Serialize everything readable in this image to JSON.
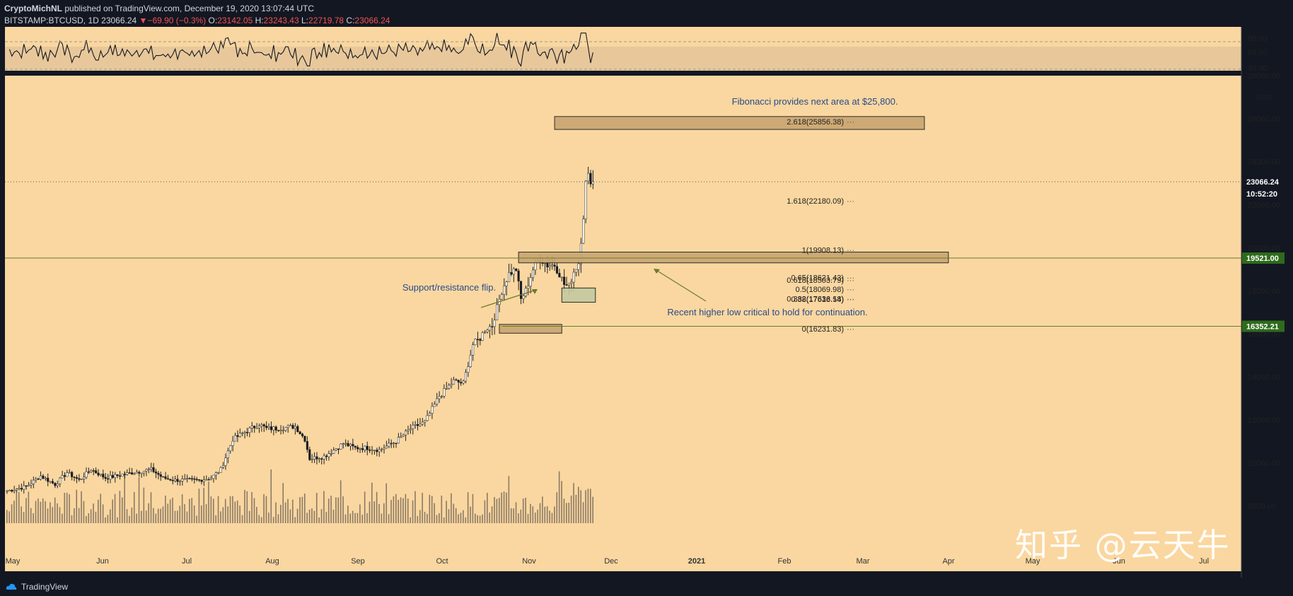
{
  "header": {
    "author": "CryptoMichNL",
    "published": "published on TradingView.com, December 19, 2020 13:07:44 UTC",
    "symbol": "BITSTAMP:BTCUSD, 1D",
    "last": "23066.24",
    "change_arrow": "▼",
    "change": "−69.90 (−0.3%)",
    "o_label": "O:",
    "o": "23142.05",
    "h_label": "H:",
    "h": "23243.43",
    "l_label": "L:",
    "l": "22719.78",
    "c_label": "C:",
    "c": "23066.24"
  },
  "footer": {
    "brand": "TradingView",
    "watermark": "知乎 @云天牛"
  },
  "colors": {
    "background": "#fad7a0",
    "up": "#ffffff",
    "down": "#131722",
    "fib_box": "#c8a570",
    "fib_box_green": "#c3c9a0",
    "line_green": "#6b7a2a",
    "price_label_bg": "#131722",
    "green_label_bg": "#2e6b1c",
    "annotation": "#2a4a8a"
  },
  "chart_data": {
    "type": "candlestick",
    "symbol": "BITSTAMP:BTCUSD",
    "interval": "1D",
    "price_unit": "USD",
    "ylim": [
      7200,
      28000
    ],
    "x_start_date": "2020-04-28",
    "x_months": [
      "May",
      "Jun",
      "Jul",
      "Aug",
      "Sep",
      "Oct",
      "Nov",
      "Dec",
      "2021",
      "Feb",
      "Mar",
      "Apr",
      "May",
      "Jun",
      "Jul"
    ],
    "y_ticks": [
      "28000.00",
      "26000.00",
      "24000.00",
      "22000.00",
      "20000.00",
      "18000.00",
      "16000.00",
      "14000.00",
      "12000.00",
      "10000.00",
      "8000.00"
    ],
    "y_ticks_values": [
      28000,
      26000,
      24000,
      22000,
      20000,
      18000,
      16000,
      14000,
      12000,
      10000,
      8000
    ],
    "close_anchors": [
      [
        0,
        8700
      ],
      [
        8,
        8900
      ],
      [
        14,
        9400
      ],
      [
        20,
        9000
      ],
      [
        25,
        9550
      ],
      [
        30,
        9200
      ],
      [
        35,
        9700
      ],
      [
        41,
        9300
      ],
      [
        50,
        9500
      ],
      [
        60,
        9700
      ],
      [
        65,
        9300
      ],
      [
        70,
        9200
      ],
      [
        80,
        9200
      ],
      [
        85,
        9300
      ],
      [
        89,
        9700
      ],
      [
        94,
        11100
      ],
      [
        100,
        11500
      ],
      [
        105,
        11800
      ],
      [
        108,
        11600
      ],
      [
        113,
        11600
      ],
      [
        120,
        11700
      ],
      [
        124,
        11100
      ],
      [
        126,
        10200
      ],
      [
        132,
        10300
      ],
      [
        140,
        10900
      ],
      [
        145,
        10700
      ],
      [
        150,
        10700
      ],
      [
        155,
        10600
      ],
      [
        162,
        11000
      ],
      [
        168,
        11600
      ],
      [
        174,
        11900
      ],
      [
        180,
        13100
      ],
      [
        186,
        13800
      ],
      [
        190,
        13700
      ],
      [
        194,
        15500
      ],
      [
        197,
        15800
      ],
      [
        199,
        16200
      ],
      [
        202,
        16400
      ],
      [
        206,
        18000
      ],
      [
        209,
        18800
      ],
      [
        212,
        19000
      ],
      [
        214,
        17600
      ],
      [
        216,
        18000
      ],
      [
        219,
        19000
      ],
      [
        222,
        19500
      ],
      [
        225,
        19200
      ],
      [
        228,
        19200
      ],
      [
        230,
        18800
      ],
      [
        232,
        18300
      ],
      [
        234,
        18200
      ],
      [
        236,
        18900
      ],
      [
        238,
        19300
      ],
      [
        240,
        21500
      ],
      [
        241,
        23000
      ],
      [
        242,
        23300
      ],
      [
        244,
        23066
      ]
    ],
    "price_line": {
      "value": "23066.24",
      "countdown": "10:52:20"
    },
    "horizontal_levels": [
      {
        "value": 19521,
        "label": "19521.00"
      },
      {
        "value": 16352.21,
        "label": "16352.21"
      }
    ],
    "fibonacci": [
      {
        "label": "2.618(25856.38)",
        "price": 25856.38
      },
      {
        "label": "1.618(22180.09)",
        "price": 22180.09
      },
      {
        "label": "1(19908.13)",
        "price": 19908.13
      },
      {
        "label": "0.65(18621.43)",
        "price": 18621.43
      },
      {
        "label": "0.618(18503.79)",
        "price": 18503.79
      },
      {
        "label": "0.5(18069.98)",
        "price": 18069.98
      },
      {
        "label": "0.382(17636.18)",
        "price": 17636.18
      },
      {
        "label": "0.38(17618.54)",
        "price": 17618.54
      },
      {
        "label": "0(16231.83)",
        "price": 16231.83
      }
    ],
    "zones": [
      {
        "name": "fib-target",
        "day_from": 228,
        "day_to": 382,
        "price_top": 26100,
        "price_bottom": 25500
      },
      {
        "name": "resistance",
        "day_from": 213,
        "day_to": 392,
        "price_top": 19800,
        "price_bottom": 19300
      },
      {
        "name": "support",
        "day_from": 205,
        "day_to": 231,
        "price_top": 16440,
        "price_bottom": 16030
      },
      {
        "name": "higher-low",
        "day_from": 231,
        "day_to": 245,
        "price_top": 18130,
        "price_bottom": 17470
      }
    ],
    "annotations": [
      "Fibonacci provides next area at $25,800.",
      "Support/resistance flip.",
      "Recent higher low critical to hold for continuation."
    ],
    "rsi": {
      "ticks": [
        "80.00",
        "60.00",
        "40.00"
      ],
      "overbought": 70,
      "oversold": 30
    }
  }
}
